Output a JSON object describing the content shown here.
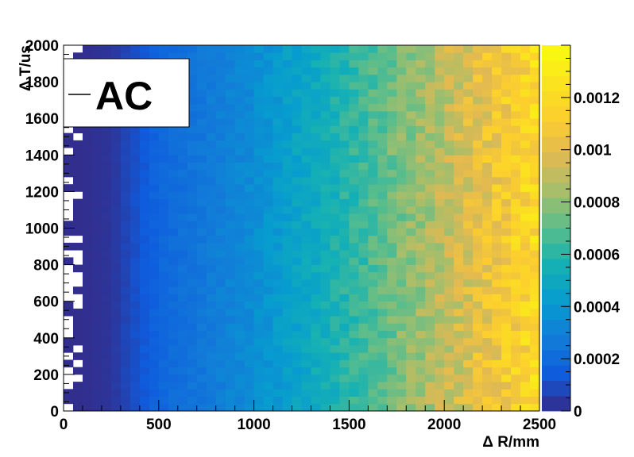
{
  "chart_data": {
    "type": "heatmap",
    "title": "",
    "xlabel": "Δ R/mm",
    "ylabel": "Δ T/us",
    "xlim": [
      0,
      2500
    ],
    "ylim": [
      0,
      2000
    ],
    "x_ticks": [
      "0",
      "500",
      "1000",
      "1500",
      "2000",
      "2500"
    ],
    "y_ticks": [
      "0",
      "200",
      "400",
      "600",
      "800",
      "1000",
      "1200",
      "1400",
      "1600",
      "1800",
      "2000"
    ],
    "colorbar_range": [
      0,
      0.0014
    ],
    "colorbar_ticks": [
      "0",
      "0.0002",
      "0.0004",
      "0.0006",
      "0.0008",
      "0.001",
      "0.0012"
    ],
    "x_bins": 50,
    "y_bins": 50,
    "value_trend": "density increases roughly linearly with ΔR from ~0 at ΔR=0 to ~0.0013 at ΔR=2500; approximately uniform in ΔT; leftmost bins (ΔR<100) partly empty",
    "density_at_R": [
      {
        "R": 250,
        "value": 3e-05
      },
      {
        "R": 500,
        "value": 0.00018
      },
      {
        "R": 1000,
        "value": 0.00035
      },
      {
        "R": 1500,
        "value": 0.0006
      },
      {
        "R": 2000,
        "value": 0.0009
      },
      {
        "R": 2500,
        "value": 0.0012
      }
    ],
    "legend": {
      "entries": [
        "AC"
      ],
      "placement": "top-left"
    },
    "palette": "parula",
    "grid": false
  }
}
